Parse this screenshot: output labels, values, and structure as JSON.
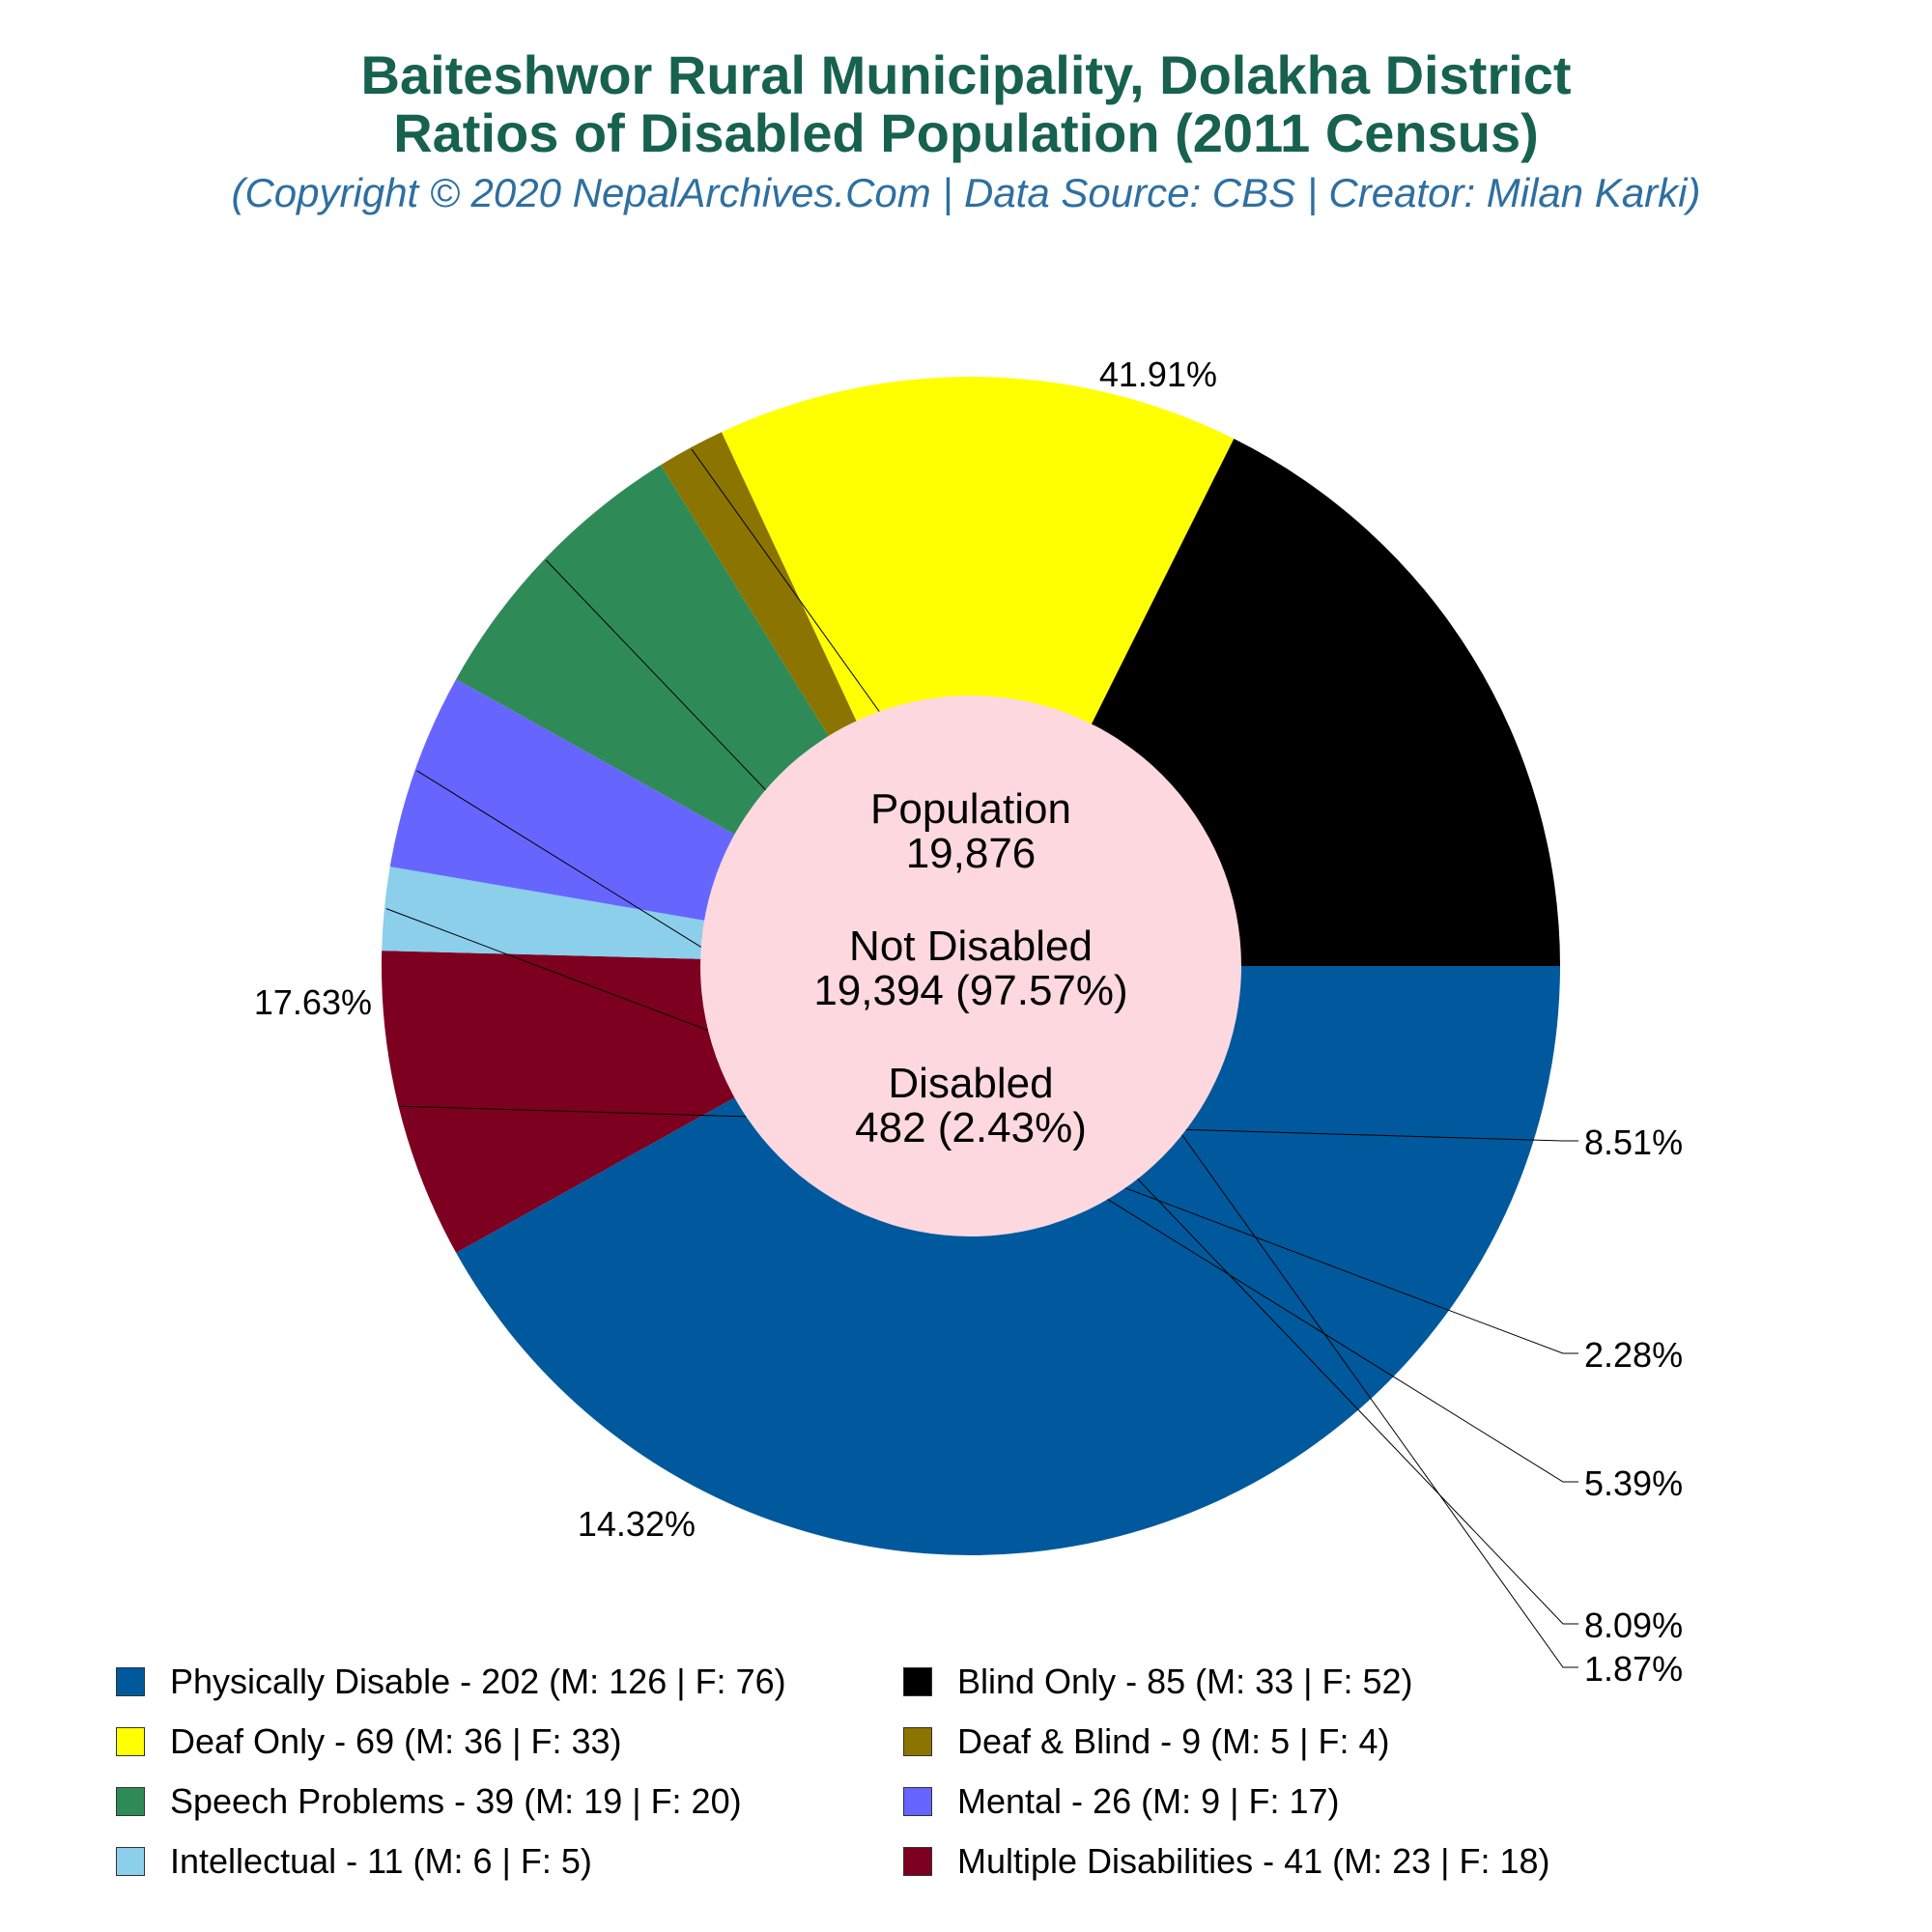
{
  "header": {
    "title_line1": "Baiteshwor Rural Municipality, Dolakha District",
    "title_line2": "Ratios of Disabled Population (2011 Census)",
    "subtitle": "(Copyright © 2020 NepalArchives.Com | Data Source: CBS | Creator: Milan Karki)"
  },
  "center": {
    "population_label": "Population",
    "population_value": "19,876",
    "not_disabled_label": "Not Disabled",
    "not_disabled_value": "19,394 (97.57%)",
    "disabled_label": "Disabled",
    "disabled_value": "482 (2.43%)",
    "color": "#fdd8df"
  },
  "chart_data": {
    "type": "pie",
    "categories": [
      "Physically Disable",
      "Multiple Disabilities",
      "Intellectual",
      "Mental",
      "Speech Problems",
      "Deaf & Blind",
      "Deaf Only",
      "Blind Only"
    ],
    "values": [
      202,
      41,
      11,
      26,
      39,
      9,
      69,
      85
    ],
    "percent_labels": [
      "41.91%",
      "8.51%",
      "2.28%",
      "5.39%",
      "8.09%",
      "1.87%",
      "14.32%",
      "17.63%"
    ],
    "colors": [
      "#00599c",
      "#7d0020",
      "#8bcfeb",
      "#6666ff",
      "#2e8b57",
      "#8b7500",
      "#ffff00",
      "#000000"
    ]
  },
  "legend": [
    {
      "text": "Physically Disable - 202 (M: 126 | F: 76)",
      "color": "#00599c"
    },
    {
      "text": "Blind Only - 85 (M: 33 | F: 52)",
      "color": "#000000"
    },
    {
      "text": "Deaf Only - 69 (M: 36 | F: 33)",
      "color": "#ffff00"
    },
    {
      "text": "Deaf & Blind - 9 (M: 5 | F: 4)",
      "color": "#8b7500"
    },
    {
      "text": "Speech Problems - 39 (M: 19 | F: 20)",
      "color": "#2e8b57"
    },
    {
      "text": "Mental - 26 (M: 9 | F: 17)",
      "color": "#6666ff"
    },
    {
      "text": "Intellectual - 11 (M: 6 | F: 5)",
      "color": "#8bcfeb"
    },
    {
      "text": "Multiple Disabilities - 41 (M: 23 | F: 18)",
      "color": "#7d0020"
    }
  ]
}
